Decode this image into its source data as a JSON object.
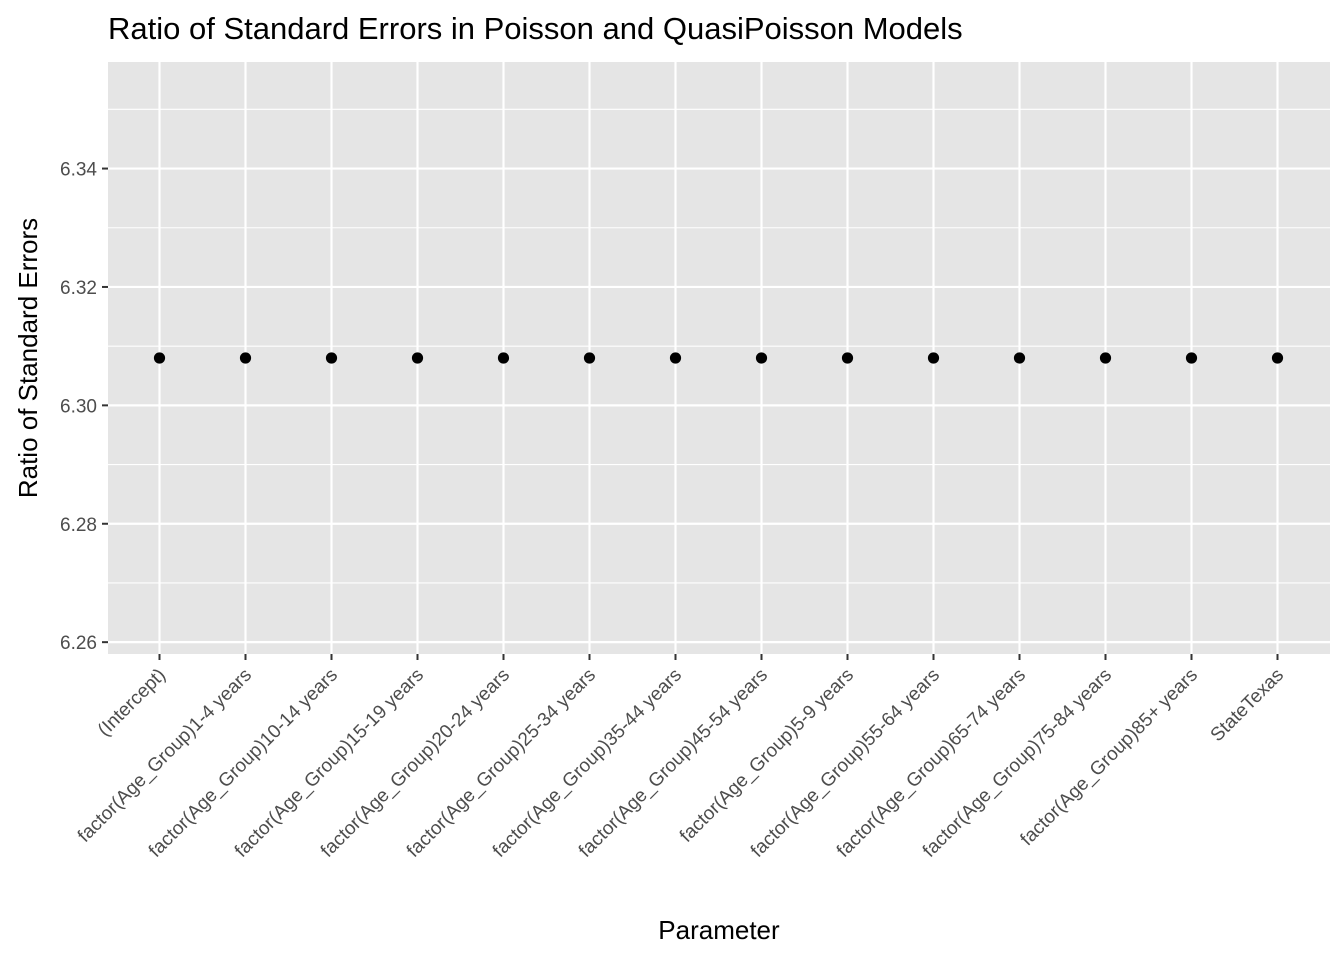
{
  "chart_data": {
    "type": "scatter",
    "title": "Ratio of Standard Errors in Poisson and QuasiPoisson Models",
    "xlabel": "Parameter",
    "ylabel": "Ratio of Standard Errors",
    "categories": [
      "(Intercept)",
      "factor(Age_Group)1-4 years",
      "factor(Age_Group)10-14 years",
      "factor(Age_Group)15-19 years",
      "factor(Age_Group)20-24 years",
      "factor(Age_Group)25-34 years",
      "factor(Age_Group)35-44 years",
      "factor(Age_Group)45-54 years",
      "factor(Age_Group)5-9 years",
      "factor(Age_Group)55-64 years",
      "factor(Age_Group)65-74 years",
      "factor(Age_Group)75-84 years",
      "factor(Age_Group)85+ years",
      "StateTexas"
    ],
    "values": [
      6.308,
      6.308,
      6.308,
      6.308,
      6.308,
      6.308,
      6.308,
      6.308,
      6.308,
      6.308,
      6.308,
      6.308,
      6.308,
      6.308
    ],
    "ylim": [
      6.258,
      6.358
    ],
    "yticks": [
      6.26,
      6.28,
      6.3,
      6.32,
      6.34
    ],
    "ytick_labels": [
      "6.26",
      "6.28",
      "6.30",
      "6.32",
      "6.34"
    ],
    "grid": true,
    "colors": {
      "panel_background": "#e5e5e5",
      "grid": "#ffffff",
      "point": "#000000",
      "tick_text": "#4d4d4d",
      "tick_mark": "#333333"
    }
  }
}
